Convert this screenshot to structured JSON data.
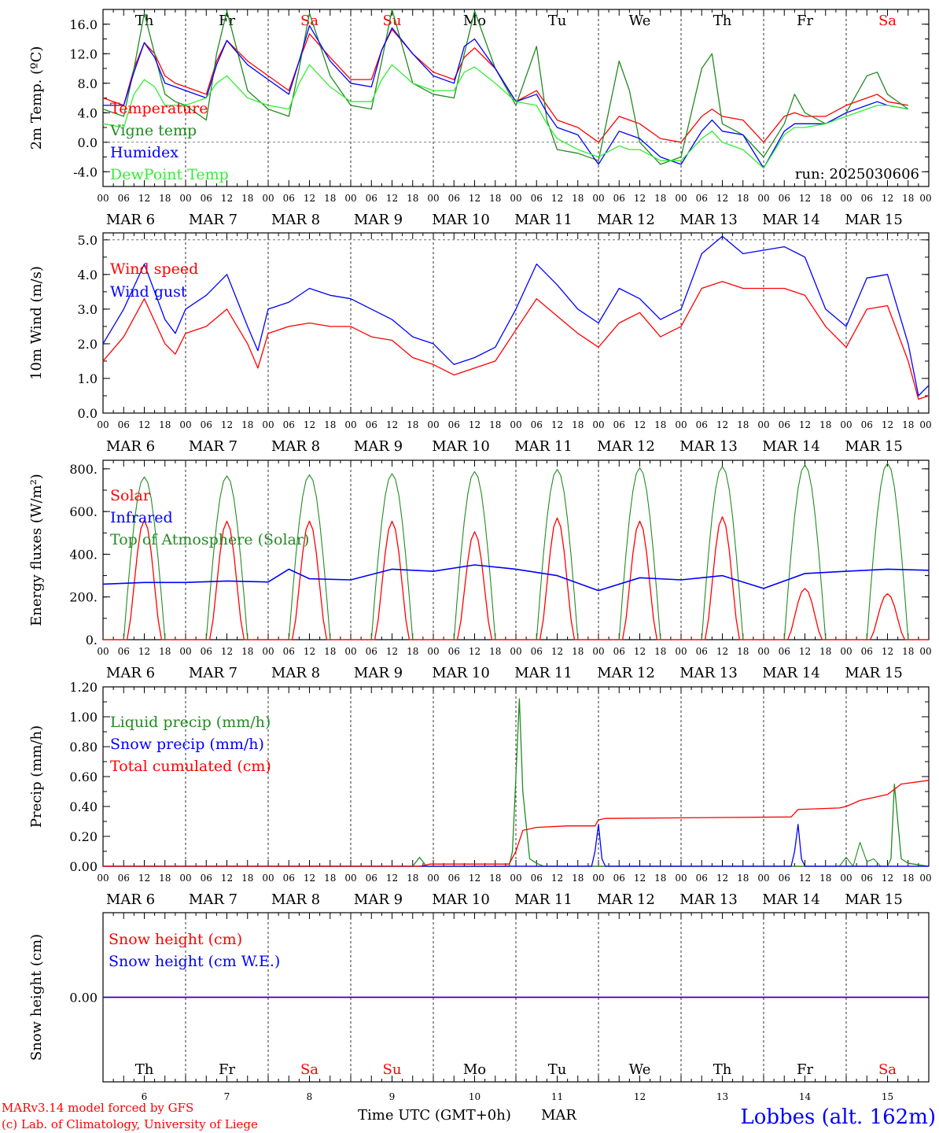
{
  "chart_data": [
    {
      "type": "line",
      "ylabel": "2m Temp. (ºC)",
      "ylim": [
        -6.0,
        18.0
      ],
      "yticks": [
        "-4.0",
        "0.0",
        "4.0",
        "8.0",
        "12.0",
        "16.0"
      ],
      "ytick_values": [
        -4,
        0,
        4,
        8,
        12,
        16
      ],
      "ref_line": 0,
      "annotation": "run: 2025030606",
      "x_unit": "hours since MAR 6 00 UTC",
      "series": [
        {
          "name": "Temperature",
          "color": "#ff0000",
          "x": [
            0,
            6,
            9,
            12,
            15,
            18,
            21,
            24,
            30,
            33,
            36,
            42,
            48,
            54,
            57,
            60,
            66,
            72,
            78,
            81,
            84,
            90,
            96,
            102,
            105,
            108,
            114,
            120,
            126,
            129,
            132,
            138,
            144,
            150,
            153,
            156,
            162,
            168,
            174,
            177,
            180,
            186,
            192,
            198,
            201,
            204,
            210,
            216,
            222,
            225,
            228,
            234
          ],
          "y": [
            6.0,
            5.0,
            10.0,
            13.5,
            12.0,
            9.0,
            8.0,
            7.5,
            6.5,
            11.0,
            13.8,
            11.0,
            9.0,
            7.0,
            11.0,
            14.7,
            11.5,
            8.5,
            8.5,
            12.5,
            15.3,
            12.0,
            9.5,
            8.5,
            11.5,
            12.8,
            10.0,
            5.5,
            7.0,
            5.0,
            3.0,
            2.0,
            0.0,
            3.5,
            3.0,
            2.5,
            0.5,
            0.0,
            3.5,
            4.5,
            3.5,
            3.0,
            0.0,
            3.5,
            4.0,
            3.5,
            3.5,
            5.0,
            6.0,
            6.5,
            5.5,
            5.0
          ]
        },
        {
          "name": "Vigne temp",
          "color": "#228b22",
          "x": [
            0,
            6,
            9,
            12,
            15,
            18,
            21,
            24,
            30,
            33,
            36,
            42,
            48,
            54,
            57,
            60,
            66,
            72,
            78,
            81,
            84,
            90,
            96,
            102,
            105,
            108,
            114,
            120,
            126,
            129,
            132,
            138,
            144,
            150,
            153,
            156,
            162,
            168,
            174,
            177,
            180,
            186,
            192,
            198,
            201,
            204,
            210,
            216,
            222,
            225,
            228,
            234
          ],
          "y": [
            4.5,
            3.5,
            10.0,
            17.5,
            12.0,
            6.5,
            5.5,
            5.0,
            3.0,
            12.0,
            17.8,
            7.0,
            4.5,
            3.5,
            10.0,
            17.5,
            9.0,
            5.0,
            4.5,
            11.0,
            18.0,
            8.0,
            6.5,
            6.0,
            12.0,
            17.8,
            10.0,
            5.0,
            13.0,
            3.0,
            -1.0,
            -1.5,
            -2.5,
            11.0,
            7.0,
            0.0,
            -3.0,
            -2.0,
            10.0,
            12.0,
            2.5,
            1.0,
            -2.0,
            2.5,
            6.5,
            4.0,
            2.5,
            4.0,
            9.0,
            9.5,
            6.5,
            4.5
          ]
        },
        {
          "name": "Humidex",
          "color": "#0000ff",
          "x": [
            0,
            6,
            9,
            12,
            15,
            18,
            21,
            24,
            30,
            33,
            36,
            42,
            48,
            54,
            57,
            60,
            66,
            72,
            78,
            81,
            84,
            90,
            96,
            102,
            105,
            108,
            114,
            120,
            126,
            129,
            132,
            138,
            144,
            150,
            153,
            156,
            162,
            168,
            174,
            177,
            180,
            186,
            192,
            198,
            201,
            204,
            210,
            216,
            222,
            225,
            228,
            234
          ],
          "y": [
            5.0,
            5.0,
            9.5,
            13.5,
            11.5,
            8.0,
            7.5,
            7.0,
            6.0,
            10.5,
            13.8,
            10.5,
            8.5,
            6.5,
            11.0,
            15.8,
            11.0,
            8.0,
            7.5,
            12.5,
            15.5,
            12.0,
            9.0,
            8.0,
            13.0,
            14.0,
            10.0,
            5.5,
            6.5,
            4.0,
            2.0,
            1.0,
            -3.0,
            1.5,
            1.0,
            0.5,
            -2.0,
            -3.0,
            1.5,
            3.0,
            1.5,
            1.0,
            -3.5,
            1.5,
            2.5,
            2.5,
            2.5,
            4.0,
            5.0,
            5.5,
            5.0,
            4.5
          ]
        },
        {
          "name": "DewPoint Temp",
          "color": "#33ee33",
          "x": [
            0,
            6,
            9,
            12,
            15,
            18,
            21,
            24,
            30,
            33,
            36,
            42,
            48,
            54,
            57,
            60,
            66,
            72,
            78,
            81,
            84,
            90,
            96,
            102,
            105,
            108,
            114,
            120,
            126,
            129,
            132,
            138,
            144,
            150,
            153,
            156,
            162,
            168,
            174,
            177,
            180,
            186,
            192,
            198,
            201,
            204,
            210,
            216,
            222,
            225,
            228,
            234
          ],
          "y": [
            2.5,
            2.0,
            6.5,
            8.5,
            7.5,
            5.0,
            5.0,
            5.0,
            6.0,
            8.0,
            9.0,
            6.0,
            5.0,
            4.5,
            8.0,
            10.5,
            7.5,
            5.5,
            5.5,
            8.5,
            10.5,
            8.0,
            7.0,
            7.0,
            9.5,
            10.2,
            8.0,
            5.5,
            5.0,
            2.5,
            0.5,
            -1.0,
            -2.0,
            -0.5,
            -1.0,
            -1.0,
            -2.5,
            -2.5,
            0.5,
            1.5,
            0.0,
            -1.0,
            -3.5,
            1.0,
            2.0,
            2.0,
            2.5,
            3.5,
            4.5,
            5.0,
            5.0,
            4.5
          ]
        }
      ]
    },
    {
      "type": "line",
      "ylabel": "10m Wind (m/s)",
      "ylim": [
        0.0,
        5.2
      ],
      "yticks": [
        "0.0",
        "1.0",
        "2.0",
        "3.0",
        "4.0",
        "5.0"
      ],
      "ytick_values": [
        0,
        1,
        2,
        3,
        4,
        5
      ],
      "ref_line": 5,
      "x_unit": "hours since MAR 6 00 UTC",
      "series": [
        {
          "name": "Wind speed",
          "color": "#ff0000",
          "x": [
            0,
            6,
            12,
            18,
            21,
            24,
            30,
            36,
            42,
            45,
            48,
            54,
            60,
            66,
            72,
            78,
            84,
            90,
            96,
            102,
            108,
            114,
            120,
            126,
            132,
            138,
            144,
            150,
            156,
            162,
            168,
            174,
            180,
            186,
            192,
            198,
            204,
            210,
            216,
            222,
            228,
            234,
            237,
            240
          ],
          "y": [
            1.5,
            2.2,
            3.3,
            2.0,
            1.7,
            2.3,
            2.5,
            3.0,
            2.0,
            1.3,
            2.3,
            2.5,
            2.6,
            2.5,
            2.5,
            2.2,
            2.1,
            1.6,
            1.4,
            1.1,
            1.3,
            1.5,
            2.4,
            3.3,
            2.8,
            2.3,
            1.9,
            2.6,
            2.9,
            2.2,
            2.5,
            3.6,
            3.8,
            3.6,
            3.6,
            3.6,
            3.4,
            2.5,
            1.9,
            3.0,
            3.1,
            1.5,
            0.4,
            0.5
          ]
        },
        {
          "name": "Wind gust",
          "color": "#0000ff",
          "x": [
            0,
            6,
            12,
            18,
            21,
            24,
            30,
            36,
            42,
            45,
            48,
            54,
            60,
            66,
            72,
            78,
            84,
            90,
            96,
            102,
            108,
            114,
            120,
            126,
            132,
            138,
            144,
            150,
            156,
            162,
            168,
            174,
            180,
            186,
            192,
            198,
            204,
            210,
            216,
            222,
            228,
            234,
            237,
            240
          ],
          "y": [
            2.0,
            3.0,
            4.3,
            2.7,
            2.3,
            3.0,
            3.4,
            4.0,
            2.5,
            1.8,
            3.0,
            3.2,
            3.6,
            3.4,
            3.3,
            3.0,
            2.7,
            2.2,
            2.0,
            1.4,
            1.6,
            1.9,
            3.0,
            4.3,
            3.7,
            3.0,
            2.6,
            3.6,
            3.3,
            2.7,
            3.0,
            4.6,
            5.1,
            4.6,
            4.7,
            4.8,
            4.5,
            3.0,
            2.5,
            3.9,
            4.0,
            2.0,
            0.5,
            0.8
          ]
        }
      ]
    },
    {
      "type": "line",
      "ylabel": "Energy fluxes (W/m²)",
      "ylim": [
        0,
        840
      ],
      "yticks": [
        "0.",
        "200.",
        "400.",
        "600.",
        "800."
      ],
      "ytick_values": [
        0,
        200,
        400,
        600,
        800
      ],
      "x_unit": "hours since MAR 6 00 UTC",
      "toa_peaks": [
        762,
        767,
        772,
        777,
        787,
        797,
        805,
        811,
        818,
        826
      ],
      "solar_peaks": [
        560,
        555,
        555,
        555,
        505,
        570,
        555,
        575,
        240,
        215
      ],
      "infrared": {
        "x": [
          0,
          12,
          24,
          36,
          48,
          54,
          60,
          72,
          84,
          96,
          108,
          120,
          132,
          144,
          156,
          168,
          180,
          192,
          204,
          216,
          228,
          240
        ],
        "y": [
          260,
          268,
          268,
          275,
          270,
          330,
          285,
          280,
          330,
          320,
          350,
          330,
          300,
          230,
          290,
          280,
          300,
          240,
          310,
          320,
          330,
          325
        ]
      },
      "series": [
        {
          "name": "Solar",
          "color": "#ff0000"
        },
        {
          "name": "Infrared",
          "color": "#0000ff"
        },
        {
          "name": "Top of Atmosphere (Solar)",
          "color": "#228b22"
        }
      ]
    },
    {
      "type": "line",
      "ylabel": "Precip (mm/h)",
      "ylim": [
        0.0,
        1.2
      ],
      "yticks": [
        "0.00",
        "0.20",
        "0.40",
        "0.60",
        "0.80",
        "1.00",
        "1.20"
      ],
      "ytick_values": [
        0,
        0.2,
        0.4,
        0.6,
        0.8,
        1.0,
        1.2
      ],
      "x_unit": "hours since MAR 6 00 UTC",
      "series": [
        {
          "name": "Liquid precip (mm/h)",
          "color": "#228b22",
          "x": [
            0,
            90,
            92,
            94,
            96,
            118,
            119,
            120,
            121,
            122,
            124,
            126,
            128,
            130,
            228,
            229,
            230,
            231,
            232,
            234,
            240
          ],
          "y": [
            0,
            0,
            0.06,
            0,
            0,
            0,
            0.1,
            0.6,
            1.12,
            0.5,
            0.05,
            0.02,
            0,
            0,
            0,
            0.05,
            0.55,
            0.3,
            0.05,
            0.02,
            0
          ],
          "extra": {
            "x": [
              214,
              216,
              218,
              220,
              222,
              224,
              226
            ],
            "y": [
              0,
              0.06,
              0,
              0.16,
              0.03,
              0.05,
              0
            ]
          }
        },
        {
          "name": "Snow precip (mm/h)",
          "color": "#0000ff",
          "x": [
            0,
            142,
            143,
            144,
            145,
            146,
            200,
            201,
            202,
            203,
            204,
            240
          ],
          "y": [
            0,
            0,
            0.1,
            0.28,
            0.05,
            0,
            0,
            0.1,
            0.28,
            0.05,
            0,
            0
          ]
        },
        {
          "name": "Total cumulated (cm)",
          "color": "#ff0000",
          "x": [
            0,
            92,
            95,
            118,
            120,
            122,
            126,
            135,
            143,
            144,
            146,
            200,
            202,
            214,
            216,
            220,
            228,
            232,
            240
          ],
          "y": [
            0,
            0,
            0.015,
            0.015,
            0.1,
            0.24,
            0.26,
            0.27,
            0.27,
            0.31,
            0.32,
            0.33,
            0.38,
            0.39,
            0.4,
            0.44,
            0.48,
            0.55,
            0.575
          ]
        }
      ]
    },
    {
      "type": "line",
      "ylabel": "Snow height (cm)",
      "ylim": [
        -1,
        1
      ],
      "yticks": [
        "0.00"
      ],
      "ytick_values": [
        0
      ],
      "x_unit": "hours since MAR 6 00 UTC",
      "series": [
        {
          "name": "Snow height (cm)",
          "color": "#ff0000",
          "x": [
            0,
            240
          ],
          "y": [
            0,
            0
          ]
        },
        {
          "name": "Snow height (cm W.E.)",
          "color": "#0000ff",
          "x": [
            0,
            240
          ],
          "y": [
            0,
            0
          ]
        }
      ]
    }
  ],
  "x_axis": {
    "hour_labels": [
      "00",
      "06",
      "12",
      "18"
    ],
    "end_label": "00",
    "dates": [
      "MAR  6",
      "MAR  7",
      "MAR  8",
      "MAR  9",
      "MAR 10",
      "MAR 11",
      "MAR 12",
      "MAR 13",
      "MAR 14",
      "MAR 15"
    ],
    "day_numbers": [
      "6",
      "7",
      "8",
      "9",
      "10",
      "11",
      "12",
      "13",
      "14",
      "15"
    ],
    "day_names": [
      {
        "label": "Th",
        "color": "#000000"
      },
      {
        "label": "Fr",
        "color": "#000000"
      },
      {
        "label": "Sa",
        "color": "#ff0000"
      },
      {
        "label": "Su",
        "color": "#ff0000"
      },
      {
        "label": "Mo",
        "color": "#000000"
      },
      {
        "label": "Tu",
        "color": "#000000"
      },
      {
        "label": "We",
        "color": "#000000"
      },
      {
        "label": "Th",
        "color": "#000000"
      },
      {
        "label": "Fr",
        "color": "#000000"
      },
      {
        "label": "Sa",
        "color": "#ff0000"
      }
    ],
    "title": "Time UTC (GMT+0h)",
    "month": "MAR"
  },
  "footer": {
    "credit_line1": "MARv3.14 model forced by GFS",
    "credit_line2": "(c) Lab. of Climatology, University of Liege",
    "credit_color": "#ff0000",
    "station": "Lobbes (alt. 162m)",
    "station_color": "#0000ff"
  }
}
